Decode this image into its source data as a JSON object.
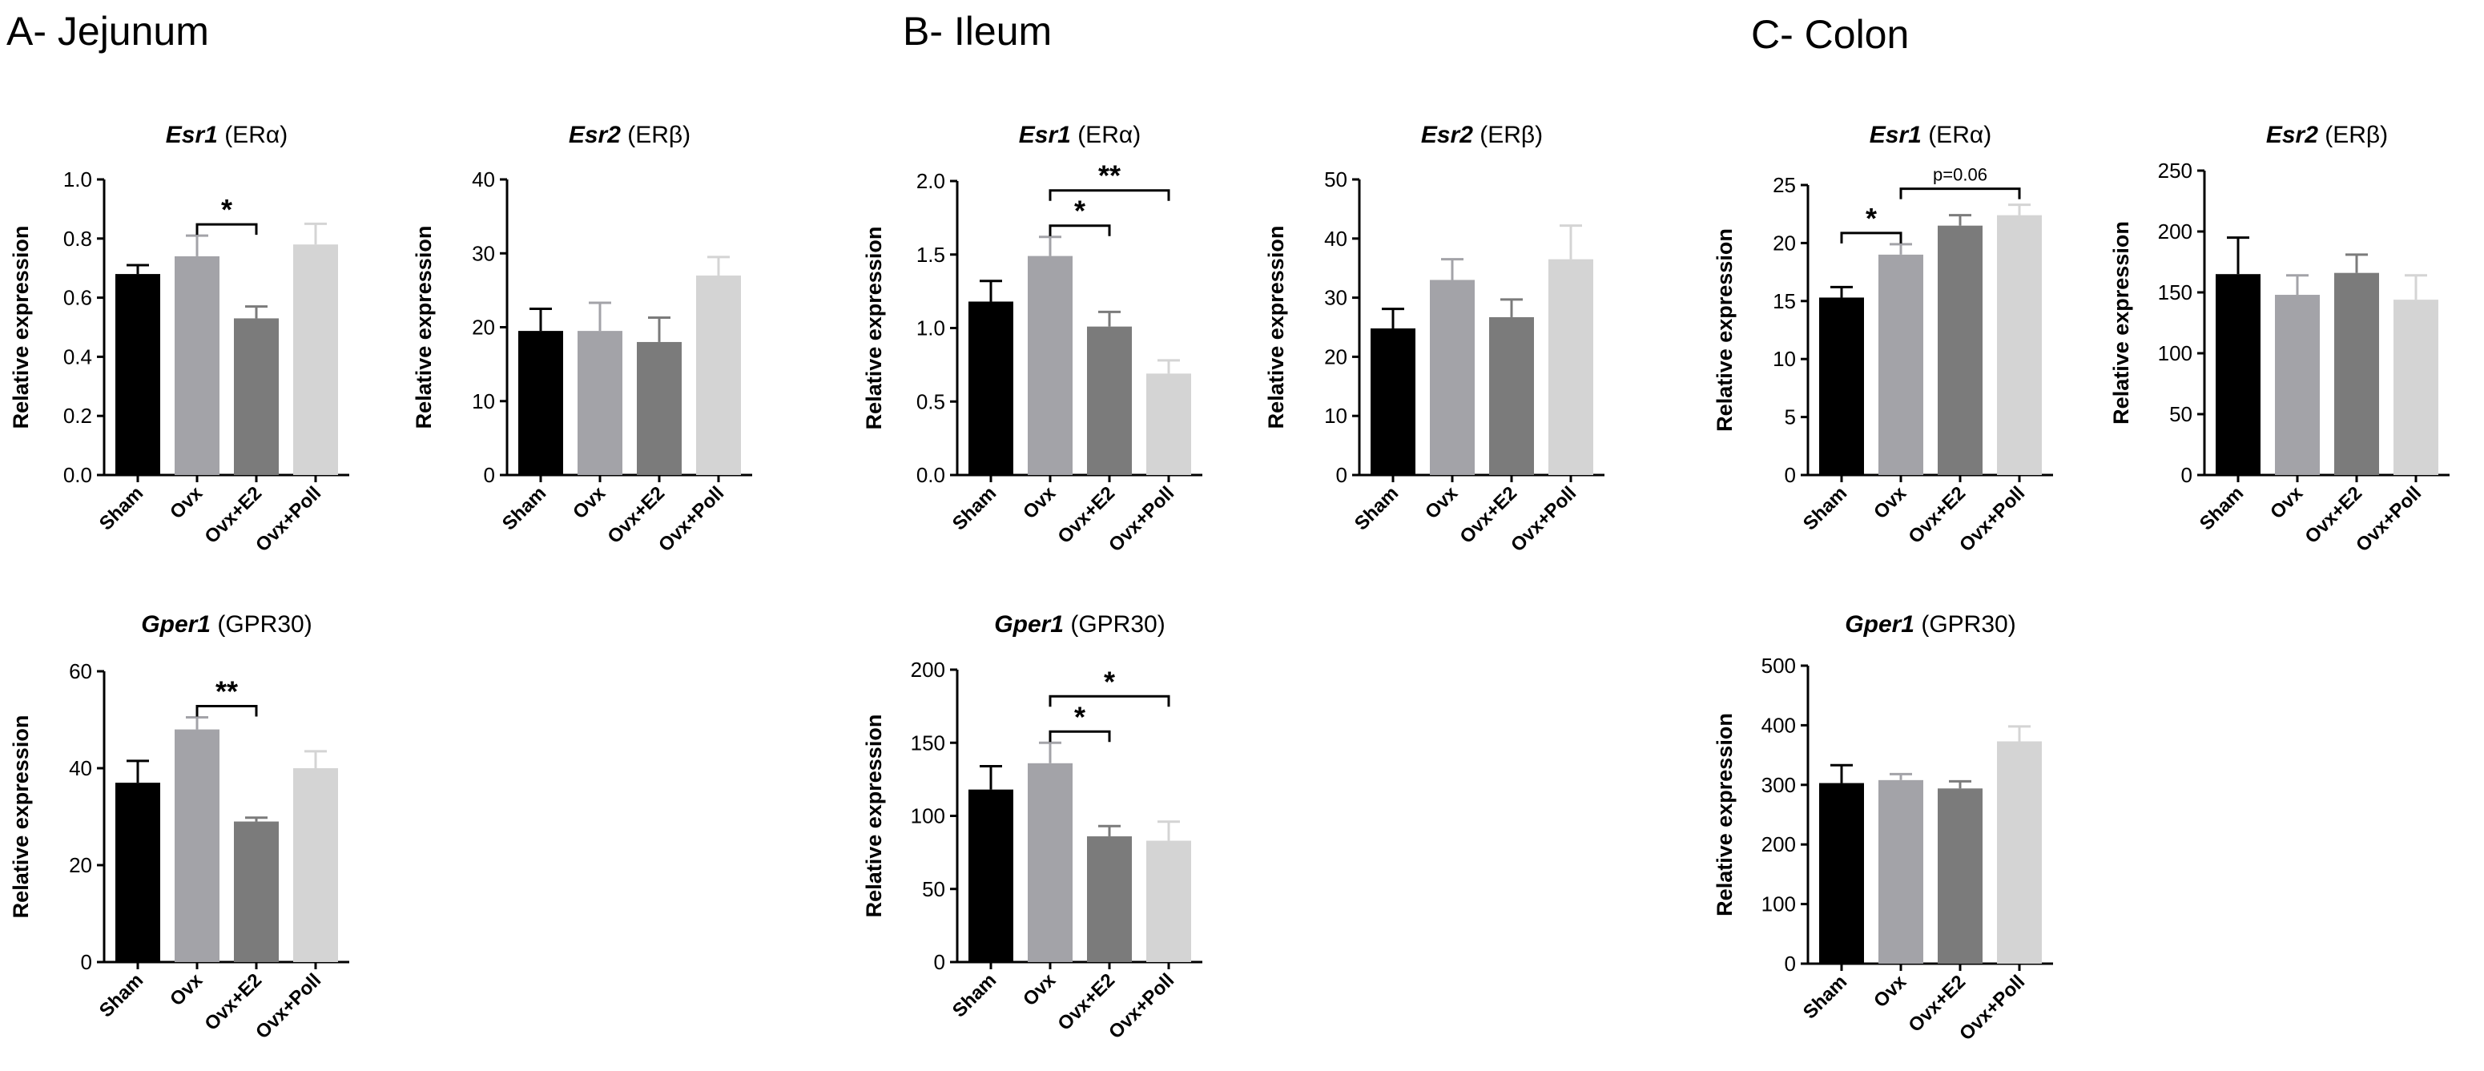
{
  "panels": [
    {
      "title": "A- Jejunum"
    },
    {
      "title": "B- Ileum"
    },
    {
      "title": "C- Colon"
    }
  ],
  "colors": [
    "#000000",
    "#a3a3a8",
    "#7b7b7b",
    "#d4d4d4"
  ],
  "chart_data": [
    {
      "id": "jejunum-esr1",
      "type": "bar",
      "gene": "Esr1",
      "receptor": "(ERα)",
      "ylabel": "Relative expression",
      "categories": [
        "Sham",
        "Ovx",
        "Ovx+E2",
        "Ovx+Poll"
      ],
      "values": [
        0.68,
        0.74,
        0.53,
        0.78
      ],
      "errors": [
        0.03,
        0.07,
        0.04,
        0.07
      ],
      "ylim": [
        0,
        1.0
      ],
      "yticks": [
        "0.0",
        "0.2",
        "0.4",
        "0.6",
        "0.8",
        "1.0"
      ],
      "significance": [
        {
          "from": 1,
          "to": 2,
          "label": "*"
        }
      ]
    },
    {
      "id": "jejunum-esr2",
      "type": "bar",
      "gene": "Esr2",
      "receptor": "(ERβ)",
      "ylabel": "Relative expression",
      "categories": [
        "Sham",
        "Ovx",
        "Ovx+E2",
        "Ovx+Poll"
      ],
      "values": [
        19.5,
        19.5,
        18,
        27
      ],
      "errors": [
        3,
        3.8,
        3.3,
        2.5
      ],
      "ylim": [
        0,
        40
      ],
      "yticks": [
        "0",
        "10",
        "20",
        "30",
        "40"
      ],
      "significance": []
    },
    {
      "id": "jejunum-gper1",
      "type": "bar",
      "gene": "Gper1",
      "receptor": "(GPR30)",
      "ylabel": "Relative expression",
      "categories": [
        "Sham",
        "Ovx",
        "Ovx+E2",
        "Ovx+Poll"
      ],
      "values": [
        37,
        48,
        29,
        40
      ],
      "errors": [
        4.5,
        2.5,
        0.8,
        3.5
      ],
      "ylim": [
        0,
        60
      ],
      "yticks": [
        "0",
        "20",
        "40",
        "60"
      ],
      "significance": [
        {
          "from": 1,
          "to": 2,
          "label": "**"
        }
      ]
    },
    {
      "id": "ileum-esr1",
      "type": "bar",
      "gene": "Esr1",
      "receptor": "(ERα)",
      "ylabel": "Relative expression",
      "categories": [
        "Sham",
        "Ovx",
        "Ovx+E2",
        "Ovx+Poll"
      ],
      "values": [
        1.18,
        1.49,
        1.01,
        0.69
      ],
      "errors": [
        0.14,
        0.13,
        0.1,
        0.09
      ],
      "ylim": [
        0,
        2.0
      ],
      "yticks": [
        "0.0",
        "0.5",
        "1.0",
        "1.5",
        "2.0"
      ],
      "significance": [
        {
          "from": 1,
          "to": 2,
          "label": "*"
        },
        {
          "from": 1,
          "to": 3,
          "label": "**"
        }
      ]
    },
    {
      "id": "ileum-esr2",
      "type": "bar",
      "gene": "Esr2",
      "receptor": "(ERβ)",
      "ylabel": "Relative expression",
      "categories": [
        "Sham",
        "Ovx",
        "Ovx+E2",
        "Ovx+Poll"
      ],
      "values": [
        24.8,
        33,
        26.7,
        36.5
      ],
      "errors": [
        3.3,
        3.5,
        3,
        5.7
      ],
      "ylim": [
        0,
        50
      ],
      "yticks": [
        "0",
        "10",
        "20",
        "30",
        "40",
        "50"
      ],
      "significance": []
    },
    {
      "id": "ileum-gper1",
      "type": "bar",
      "gene": "Gper1",
      "receptor": "(GPR30)",
      "ylabel": "Relative expression",
      "categories": [
        "Sham",
        "Ovx",
        "Ovx+E2",
        "Ovx+Poll"
      ],
      "values": [
        118,
        136,
        86,
        83
      ],
      "errors": [
        16,
        14,
        7,
        13
      ],
      "ylim": [
        0,
        200
      ],
      "yticks": [
        "0",
        "50",
        "100",
        "150",
        "200"
      ],
      "significance": [
        {
          "from": 1,
          "to": 2,
          "label": "*"
        },
        {
          "from": 1,
          "to": 3,
          "label": "*"
        }
      ]
    },
    {
      "id": "colon-esr1",
      "type": "bar",
      "gene": "Esr1",
      "receptor": "(ERα)",
      "ylabel": "Relative expression",
      "categories": [
        "Sham",
        "Ovx",
        "Ovx+E2",
        "Ovx+Poll"
      ],
      "values": [
        15.3,
        19,
        21.5,
        22.4
      ],
      "errors": [
        0.9,
        0.9,
        0.9,
        0.9
      ],
      "ylim": [
        0,
        25
      ],
      "yticks": [
        "0",
        "5",
        "10",
        "15",
        "20",
        "25"
      ],
      "significance": [
        {
          "from": 0,
          "to": 1,
          "label": "*"
        },
        {
          "from": 1,
          "to": 3,
          "label": "p=0.06"
        }
      ]
    },
    {
      "id": "colon-esr2",
      "type": "bar",
      "gene": "Esr2",
      "receptor": "(ERβ)",
      "ylabel": "Relative expression",
      "categories": [
        "Sham",
        "Ovx",
        "Ovx+E2",
        "Ovx+Poll"
      ],
      "values": [
        165,
        148,
        166,
        144
      ],
      "errors": [
        30,
        16,
        15,
        20
      ],
      "ylim": [
        0,
        250
      ],
      "yticks": [
        "0",
        "50",
        "100",
        "150",
        "200",
        "250"
      ],
      "significance": []
    },
    {
      "id": "colon-gper1",
      "type": "bar",
      "gene": "Gper1",
      "receptor": "(GPR30)",
      "ylabel": "Relative expression",
      "categories": [
        "Sham",
        "Ovx",
        "Ovx+E2",
        "Ovx+Poll"
      ],
      "values": [
        303,
        308,
        294,
        373
      ],
      "errors": [
        30,
        10,
        12,
        25
      ],
      "ylim": [
        0,
        500
      ],
      "yticks": [
        "0",
        "100",
        "200",
        "300",
        "400",
        "500"
      ],
      "significance": []
    }
  ]
}
